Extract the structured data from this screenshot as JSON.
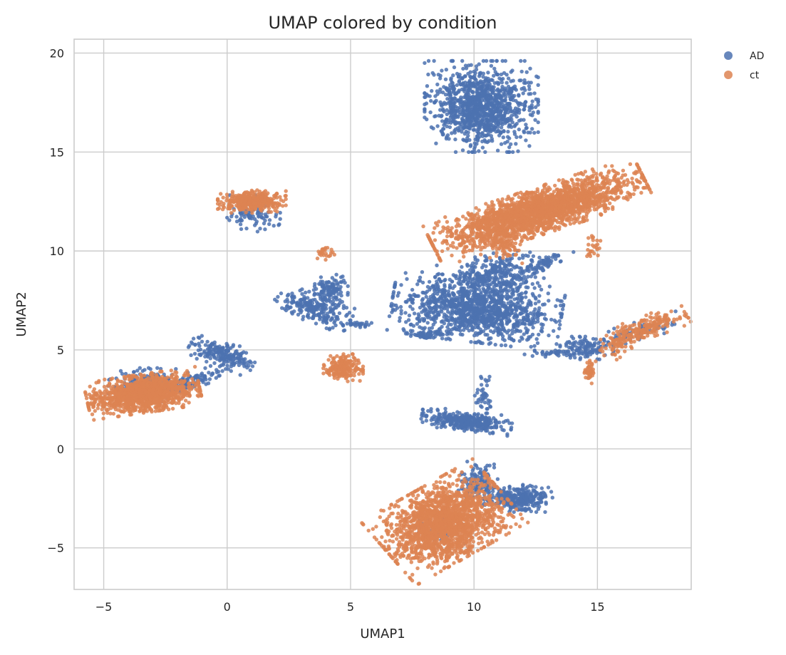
{
  "chart_data": {
    "type": "scatter",
    "title": "UMAP colored by condition",
    "xlabel": "UMAP1",
    "ylabel": "UMAP2",
    "xlim": [
      -6.2,
      18.8
    ],
    "ylim": [
      -7.1,
      20.7
    ],
    "xticks": [
      -5,
      0,
      5,
      10,
      15
    ],
    "yticks": [
      -5,
      0,
      5,
      10,
      15,
      20
    ],
    "xtick_labels": [
      "−5",
      "0",
      "5",
      "10",
      "15"
    ],
    "ytick_labels": [
      "−5",
      "0",
      "5",
      "10",
      "15",
      "20"
    ],
    "grid": true,
    "legend_position": "outside-top-right",
    "series": [
      {
        "name": "AD",
        "color": "#4c72b0",
        "clusters": [
          {
            "cx": 10.3,
            "cy": 17.3,
            "sx": 1.0,
            "sy": 1.0,
            "rot": 0,
            "n": 1100
          },
          {
            "cx": 10.1,
            "cy": 7.0,
            "sx": 1.5,
            "sy": 0.7,
            "rot": -8,
            "n": 1200
          },
          {
            "cx": 10.8,
            "cy": 8.7,
            "sx": 1.0,
            "sy": 0.5,
            "rot": 15,
            "n": 350
          },
          {
            "cx": 12.8,
            "cy": 9.3,
            "sx": 0.6,
            "sy": 0.15,
            "rot": 35,
            "n": 60
          },
          {
            "cx": 8.1,
            "cy": 5.8,
            "sx": 0.4,
            "sy": 0.1,
            "rot": 0,
            "n": 50
          },
          {
            "cx": 9.7,
            "cy": 1.4,
            "sx": 0.8,
            "sy": 0.22,
            "rot": -8,
            "n": 350
          },
          {
            "cx": 10.4,
            "cy": 2.5,
            "sx": 0.2,
            "sy": 0.5,
            "rot": 0,
            "n": 40
          },
          {
            "cx": 11.8,
            "cy": -2.5,
            "sx": 0.6,
            "sy": 0.3,
            "rot": 0,
            "n": 300
          },
          {
            "cx": 10.2,
            "cy": -1.7,
            "sx": 0.4,
            "sy": 0.5,
            "rot": 0,
            "n": 120
          },
          {
            "cx": 3.5,
            "cy": 7.1,
            "sx": 0.7,
            "sy": 0.3,
            "rot": -25,
            "n": 220
          },
          {
            "cx": 4.2,
            "cy": 8.0,
            "sx": 0.3,
            "sy": 0.35,
            "rot": 0,
            "n": 120
          },
          {
            "cx": 5.3,
            "cy": 6.3,
            "sx": 0.3,
            "sy": 0.08,
            "rot": 0,
            "n": 30
          },
          {
            "cx": -0.2,
            "cy": 4.8,
            "sx": 0.6,
            "sy": 0.3,
            "rot": -25,
            "n": 200
          },
          {
            "cx": -1.6,
            "cy": 3.3,
            "sx": 0.8,
            "sy": 0.18,
            "rot": 25,
            "n": 120
          },
          {
            "cx": -3.2,
            "cy": 3.4,
            "sx": 0.7,
            "sy": 0.3,
            "rot": 0,
            "n": 150
          },
          {
            "cx": 1.0,
            "cy": 11.9,
            "sx": 0.5,
            "sy": 0.4,
            "rot": 0,
            "n": 100
          },
          {
            "cx": 14.5,
            "cy": 5.1,
            "sx": 0.5,
            "sy": 0.25,
            "rot": 0,
            "n": 120
          },
          {
            "cx": 16.8,
            "cy": 6.0,
            "sx": 0.7,
            "sy": 0.2,
            "rot": 20,
            "n": 80
          },
          {
            "cx": 13.2,
            "cy": 4.8,
            "sx": 0.6,
            "sy": 0.1,
            "rot": 0,
            "n": 30
          },
          {
            "cx": 8.5,
            "cy": -4.0,
            "sx": 0.5,
            "sy": 0.4,
            "rot": 0,
            "n": 60
          }
        ]
      },
      {
        "name": "ct",
        "color": "#dd8452",
        "clusters": [
          {
            "cx": 12.6,
            "cy": 12.0,
            "sx": 2.0,
            "sy": 0.5,
            "rot": 22,
            "n": 2200
          },
          {
            "cx": 11.2,
            "cy": 10.3,
            "sx": 0.4,
            "sy": 0.4,
            "rot": 0,
            "n": 80
          },
          {
            "cx": 14.8,
            "cy": 10.2,
            "sx": 0.15,
            "sy": 0.3,
            "rot": 0,
            "n": 25
          },
          {
            "cx": 8.8,
            "cy": -3.7,
            "sx": 1.2,
            "sy": 0.85,
            "rot": 35,
            "n": 1800
          },
          {
            "cx": 8.9,
            "cy": -5.1,
            "sx": 0.5,
            "sy": 0.18,
            "rot": 0,
            "n": 50
          },
          {
            "cx": -3.4,
            "cy": 2.8,
            "sx": 1.0,
            "sy": 0.42,
            "rot": 10,
            "n": 1200
          },
          {
            "cx": 1.0,
            "cy": 12.5,
            "sx": 0.6,
            "sy": 0.25,
            "rot": 0,
            "n": 350
          },
          {
            "cx": 4.7,
            "cy": 4.1,
            "sx": 0.35,
            "sy": 0.3,
            "rot": 0,
            "n": 200
          },
          {
            "cx": 4.0,
            "cy": 9.9,
            "sx": 0.15,
            "sy": 0.15,
            "rot": 0,
            "n": 25
          },
          {
            "cx": 16.9,
            "cy": 6.1,
            "sx": 0.8,
            "sy": 0.25,
            "rot": 25,
            "n": 200
          },
          {
            "cx": 15.8,
            "cy": 5.2,
            "sx": 0.3,
            "sy": 0.3,
            "rot": 0,
            "n": 50
          },
          {
            "cx": 14.7,
            "cy": 4.0,
            "sx": 0.1,
            "sy": 0.3,
            "rot": 0,
            "n": 40
          }
        ]
      }
    ]
  }
}
